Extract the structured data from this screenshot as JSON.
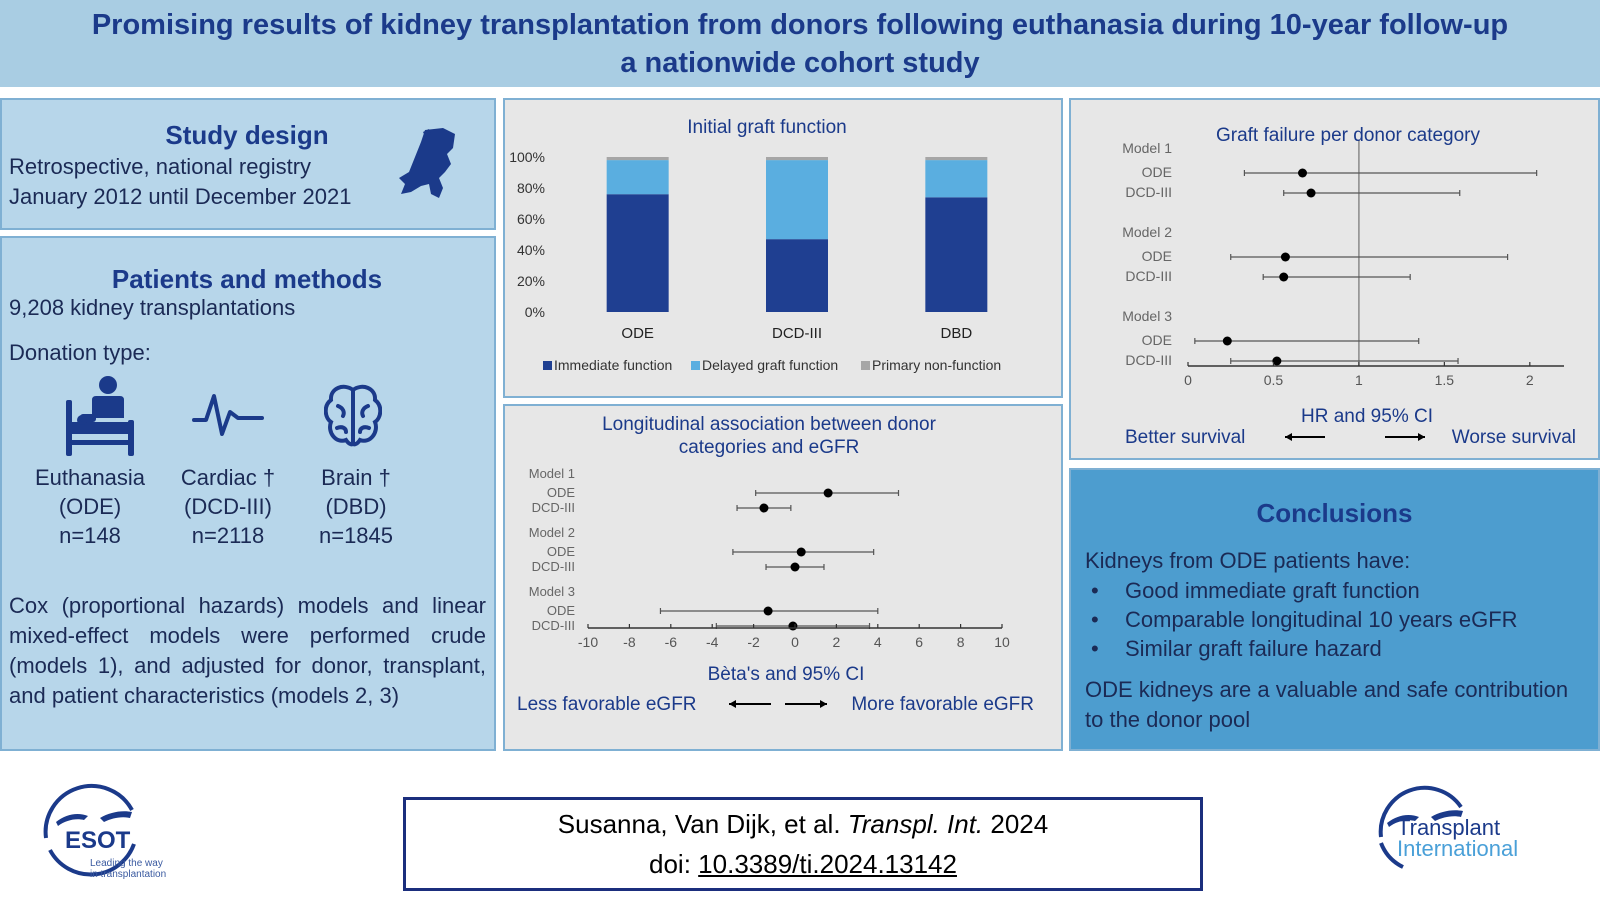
{
  "title": {
    "line1": "Promising results of kidney transplantation from donors following euthanasia during 10-year follow-up",
    "line2": "a nationwide cohort study"
  },
  "study_design": {
    "heading": "Study design",
    "line1": "Retrospective, national registry",
    "line2": "January 2012 until December 2021"
  },
  "patients": {
    "heading": "Patients and methods",
    "count": "9,208 kidney transplantations",
    "donation_type_label": "Donation type:",
    "categories": [
      {
        "name": "Euthanasia",
        "abbr": "(ODE)",
        "n": "n=148"
      },
      {
        "name": "Cardiac †",
        "abbr": "(DCD-III)",
        "n": "n=2118"
      },
      {
        "name": "Brain †",
        "abbr": "(DBD)",
        "n": "n=1845"
      }
    ],
    "methods": "Cox (proportional hazards) models and linear mixed-effect models were performed crude (models 1), and adjusted for donor, transplant, and patient characteristics (models 2, 3)"
  },
  "conclusions": {
    "heading": "Conclusions",
    "intro": "Kidneys from ODE patients have:",
    "bullets": [
      "Good immediate graft function",
      "Comparable longitudinal 10 years eGFR",
      "Similar graft failure hazard"
    ],
    "closing": "ODE kidneys are a valuable and safe contribution to the donor pool"
  },
  "citation": {
    "authors": "Susanna, Van Dijk, et al.",
    "journal": "Transpl. Int.",
    "year": "2024",
    "doi_prefix": "doi:",
    "doi": "10.3389/ti.2024.13142"
  },
  "logos": {
    "esot_name": "ESOT",
    "esot_tagline_1": "Leading the way",
    "esot_tagline_2": "in transplantation",
    "ti_line1": "Transplant",
    "ti_line2": "International"
  },
  "colors": {
    "dark_blue": "#1b3a8a",
    "immediate": "#1f3f91",
    "delayed": "#5aaee0",
    "primary_non_function": "#a6a6a6"
  },
  "chart_data": [
    {
      "type": "bar",
      "stacked": true,
      "title": "Initial graft function",
      "categories": [
        "ODE",
        "DCD-III",
        "DBD"
      ],
      "series": [
        {
          "name": "Immediate function",
          "color": "#1f3f91",
          "values": [
            76,
            47,
            74
          ]
        },
        {
          "name": "Delayed graft function",
          "color": "#5aaee0",
          "values": [
            22,
            51,
            24
          ]
        },
        {
          "name": "Primary non-function",
          "color": "#a6a6a6",
          "values": [
            2,
            2,
            2
          ]
        }
      ],
      "yticks": [
        "0%",
        "20%",
        "40%",
        "60%",
        "80%",
        "100%"
      ],
      "ylim": [
        0,
        100
      ]
    },
    {
      "type": "forest",
      "title_line1": "Longitudinal association between donor",
      "title_line2": "categories and eGFR",
      "xlabel": "Bèta's and 95% CI",
      "xlim": [
        -10,
        10
      ],
      "xticks": [
        -10,
        -8,
        -6,
        -4,
        -2,
        0,
        2,
        4,
        6,
        8,
        10
      ],
      "models": [
        {
          "label": "Model 1",
          "rows": [
            {
              "name": "ODE",
              "est": 1.6,
              "lo": -1.9,
              "hi": 5.0
            },
            {
              "name": "DCD-III",
              "est": -1.5,
              "lo": -2.8,
              "hi": -0.2
            }
          ]
        },
        {
          "label": "Model 2",
          "rows": [
            {
              "name": "ODE",
              "est": 0.3,
              "lo": -3.0,
              "hi": 3.8
            },
            {
              "name": "DCD-III",
              "est": 0.0,
              "lo": -1.4,
              "hi": 1.4
            }
          ]
        },
        {
          "label": "Model 3",
          "rows": [
            {
              "name": "ODE",
              "est": -1.3,
              "lo": -6.5,
              "hi": 4.0
            },
            {
              "name": "DCD-III",
              "est": -0.1,
              "lo": -3.8,
              "hi": 3.6
            }
          ]
        }
      ],
      "left_note": "Less favorable eGFR",
      "right_note": "More favorable eGFR"
    },
    {
      "type": "forest",
      "title": "Graft failure per donor category",
      "xlabel": "HR and 95% CI",
      "xlim": [
        0,
        2.2
      ],
      "xticks": [
        0,
        0.5,
        1,
        1.5,
        2
      ],
      "reference": 1,
      "models": [
        {
          "label": "Model 1",
          "rows": [
            {
              "name": "ODE",
              "est": 0.67,
              "lo": 0.33,
              "hi": 2.04
            },
            {
              "name": "DCD-III",
              "est": 0.72,
              "lo": 0.56,
              "hi": 1.59
            }
          ]
        },
        {
          "label": "Model 2",
          "rows": [
            {
              "name": "ODE",
              "est": 0.57,
              "lo": 0.25,
              "hi": 1.87
            },
            {
              "name": "DCD-III",
              "est": 0.56,
              "lo": 0.44,
              "hi": 1.3
            }
          ]
        },
        {
          "label": "Model 3",
          "rows": [
            {
              "name": "ODE",
              "est": 0.23,
              "lo": 0.04,
              "hi": 1.35
            },
            {
              "name": "DCD-III",
              "est": 0.52,
              "lo": 0.25,
              "hi": 1.58
            }
          ]
        }
      ],
      "left_note": "Better survival",
      "right_note": "Worse survival"
    }
  ]
}
